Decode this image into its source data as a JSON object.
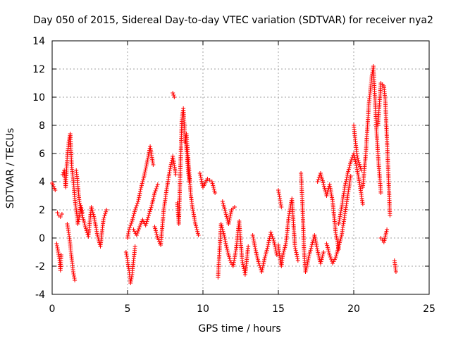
{
  "chart_data": {
    "type": "scatter",
    "title": "Day 050 of 2015, Sidereal Day-to-day VTEC variation (SDTVAR) for receiver nya2",
    "xlabel": "GPS time / hours",
    "ylabel": "SDTVAR / TECUs",
    "xlim": [
      0,
      25
    ],
    "ylim": [
      -4,
      14
    ],
    "xticks": [
      "0",
      "5",
      "10",
      "15",
      "20",
      "25"
    ],
    "yticks": [
      "-4",
      "-2",
      "0",
      "2",
      "4",
      "6",
      "8",
      "10",
      "12",
      "14"
    ],
    "grid": true,
    "marker": "plus",
    "color": "#ff0000",
    "series": [
      {
        "name": "SDTVAR",
        "segments": [
          {
            "x": [
              0.0,
              0.2
            ],
            "y": [
              3.9,
              3.4
            ]
          },
          {
            "x": [
              0.3,
              0.4,
              0.5,
              0.55,
              0.6
            ],
            "y": [
              -0.4,
              -1.0,
              -1.6,
              -2.3,
              -1.2
            ]
          },
          {
            "x": [
              0.35,
              0.45,
              0.55,
              0.65
            ],
            "y": [
              1.8,
              1.6,
              1.5,
              1.7
            ]
          },
          {
            "x": [
              0.7,
              0.8,
              0.9,
              1.0,
              1.1,
              1.2,
              1.3,
              1.4,
              1.5,
              1.6,
              1.7,
              1.8,
              1.9,
              2.0
            ],
            "y": [
              4.5,
              4.8,
              3.6,
              5.8,
              6.8,
              7.4,
              5.0,
              4.2,
              2.8,
              2.0,
              1.0,
              1.5,
              2.3,
              1.8
            ]
          },
          {
            "x": [
              1.0,
              1.1,
              1.2,
              1.3,
              1.4,
              1.5
            ],
            "y": [
              1.0,
              0.4,
              -0.5,
              -1.5,
              -2.4,
              -3.0
            ]
          },
          {
            "x": [
              1.6,
              1.7,
              1.8,
              2.0,
              2.2,
              2.4,
              2.6,
              2.8,
              3.0,
              3.2,
              3.4,
              3.6
            ],
            "y": [
              4.8,
              3.8,
              2.6,
              1.6,
              0.8,
              0.1,
              2.2,
              1.4,
              0.2,
              -0.6,
              1.3,
              2.0
            ]
          },
          {
            "x": [
              4.9,
              5.0,
              5.1,
              5.2,
              5.3,
              5.4,
              5.5
            ],
            "y": [
              -1.0,
              -1.6,
              -2.3,
              -3.2,
              -2.6,
              -1.6,
              -0.6
            ]
          },
          {
            "x": [
              5.0,
              5.1,
              5.3,
              5.5,
              5.7,
              5.9,
              6.1,
              6.3,
              6.5,
              6.7
            ],
            "y": [
              0.0,
              0.6,
              1.2,
              2.0,
              2.6,
              3.6,
              4.4,
              5.4,
              6.5,
              5.2
            ]
          },
          {
            "x": [
              5.4,
              5.6,
              5.8,
              6.0,
              6.2,
              6.4,
              6.6,
              6.8,
              7.0
            ],
            "y": [
              0.6,
              0.2,
              0.8,
              1.3,
              0.9,
              1.6,
              2.3,
              3.2,
              3.8
            ]
          },
          {
            "x": [
              6.8,
              7.0,
              7.2,
              7.4,
              7.6,
              7.8,
              8.0,
              8.2
            ],
            "y": [
              0.8,
              0.0,
              -0.5,
              2.0,
              3.5,
              4.8,
              5.8,
              4.5
            ]
          },
          {
            "x": [
              8.0,
              8.1
            ],
            "y": [
              10.3,
              10.0
            ]
          },
          {
            "x": [
              8.3,
              8.4,
              8.5,
              8.6,
              8.7,
              8.8,
              8.9,
              9.0,
              9.1
            ],
            "y": [
              2.5,
              1.0,
              4.8,
              8.4,
              9.2,
              7.4,
              6.4,
              5.0,
              4.0
            ]
          },
          {
            "x": [
              8.8,
              8.9,
              9.0,
              9.1,
              9.2,
              9.3,
              9.5,
              9.7
            ],
            "y": [
              6.8,
              7.4,
              6.0,
              4.5,
              3.0,
              2.2,
              1.0,
              0.2
            ]
          },
          {
            "x": [
              9.8,
              10.0,
              10.3,
              10.6,
              10.8
            ],
            "y": [
              4.6,
              3.6,
              4.2,
              4.0,
              3.2
            ]
          },
          {
            "x": [
              11.0,
              11.2,
              11.4,
              11.6,
              11.8,
              12.0,
              12.2,
              12.4,
              12.6,
              12.8,
              13.0
            ],
            "y": [
              -2.8,
              1.0,
              0.2,
              -0.8,
              -1.6,
              -2.0,
              -0.8,
              1.2,
              -1.6,
              -2.6,
              -0.6
            ]
          },
          {
            "x": [
              11.3,
              11.5,
              11.7,
              11.9,
              12.1
            ],
            "y": [
              2.6,
              1.8,
              1.0,
              2.0,
              2.2
            ]
          },
          {
            "x": [
              13.3,
              13.5,
              13.7,
              13.9,
              14.1,
              14.3,
              14.5,
              14.7,
              14.9
            ],
            "y": [
              0.2,
              -0.9,
              -1.8,
              -2.4,
              -1.4,
              -0.6,
              0.4,
              -0.2,
              -1.2
            ]
          },
          {
            "x": [
              15.0,
              15.1,
              15.2,
              15.3,
              15.5,
              15.7,
              15.9,
              16.1,
              16.3
            ],
            "y": [
              -0.5,
              -1.4,
              -2.0,
              -1.2,
              -0.4,
              1.6,
              2.8,
              -0.6,
              -1.6
            ]
          },
          {
            "x": [
              15.0,
              15.1,
              15.2
            ],
            "y": [
              3.4,
              2.8,
              2.2
            ]
          },
          {
            "x": [
              16.5,
              16.6,
              16.7,
              16.8,
              16.9,
              17.0,
              17.2,
              17.4,
              17.6,
              17.8,
              18.0
            ],
            "y": [
              4.6,
              2.4,
              -0.8,
              -2.4,
              -2.0,
              -1.4,
              -0.6,
              0.2,
              -0.9,
              -1.8,
              -1.0
            ]
          },
          {
            "x": [
              17.6,
              17.8,
              18.0,
              18.2,
              18.4,
              18.6,
              18.8,
              19.0
            ],
            "y": [
              4.0,
              4.6,
              3.8,
              3.0,
              3.8,
              2.6,
              0.4,
              -0.8
            ]
          },
          {
            "x": [
              18.2,
              18.4,
              18.6,
              18.8,
              19.0,
              19.2,
              19.4,
              19.6,
              19.8
            ],
            "y": [
              -0.4,
              -1.2,
              -1.8,
              -1.4,
              -0.6,
              0.2,
              1.6,
              3.0,
              4.4
            ]
          },
          {
            "x": [
              19.0,
              19.2,
              19.4,
              19.6,
              19.8,
              20.0,
              20.2,
              20.4,
              20.6
            ],
            "y": [
              1.0,
              2.2,
              3.6,
              4.6,
              5.4,
              6.0,
              5.0,
              3.8,
              2.4
            ]
          },
          {
            "x": [
              20.0,
              20.1,
              20.2,
              20.3,
              20.5
            ],
            "y": [
              8.0,
              7.0,
              6.0,
              5.5,
              4.8
            ]
          },
          {
            "x": [
              20.6,
              20.8,
              21.0,
              21.1,
              21.2,
              21.3,
              21.4,
              21.5,
              21.6,
              21.8
            ],
            "y": [
              3.6,
              6.0,
              9.5,
              10.5,
              11.5,
              12.2,
              10.0,
              7.8,
              6.0,
              3.2
            ]
          },
          {
            "x": [
              21.6,
              21.8,
              22.0,
              22.1,
              22.2,
              22.3,
              22.4
            ],
            "y": [
              8.0,
              11.0,
              10.8,
              9.6,
              7.0,
              4.4,
              1.6
            ]
          },
          {
            "x": [
              21.8,
              22.0,
              22.2
            ],
            "y": [
              0.0,
              -0.3,
              0.6
            ]
          },
          {
            "x": [
              22.7,
              22.8
            ],
            "y": [
              -1.6,
              -2.4
            ]
          }
        ]
      }
    ]
  }
}
